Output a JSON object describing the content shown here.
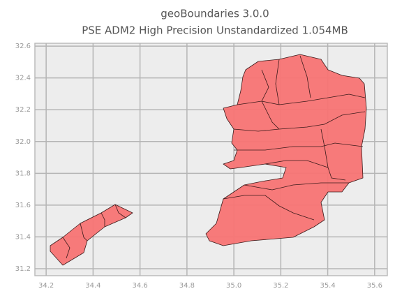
{
  "chart_data": {
    "type": "map",
    "title": "geoBoundaries 3.0.0",
    "subtitle": "PSE ADM2 High Precision Unstandardized 1.054MB",
    "xlim": [
      34.152,
      35.654
    ],
    "ylim": [
      31.156,
      32.618
    ],
    "xticks": [
      34.2,
      34.4,
      34.6,
      34.8,
      {
        "value": 35,
        "label": "35.0"
      },
      35.2,
      35.4,
      35.6
    ],
    "yticks": [
      31.2,
      31.4,
      31.6,
      31.8,
      {
        "value": 32,
        "label": "32.0"
      },
      32.2,
      32.4,
      32.6
    ],
    "grid": true,
    "color": "#f87474"
  }
}
